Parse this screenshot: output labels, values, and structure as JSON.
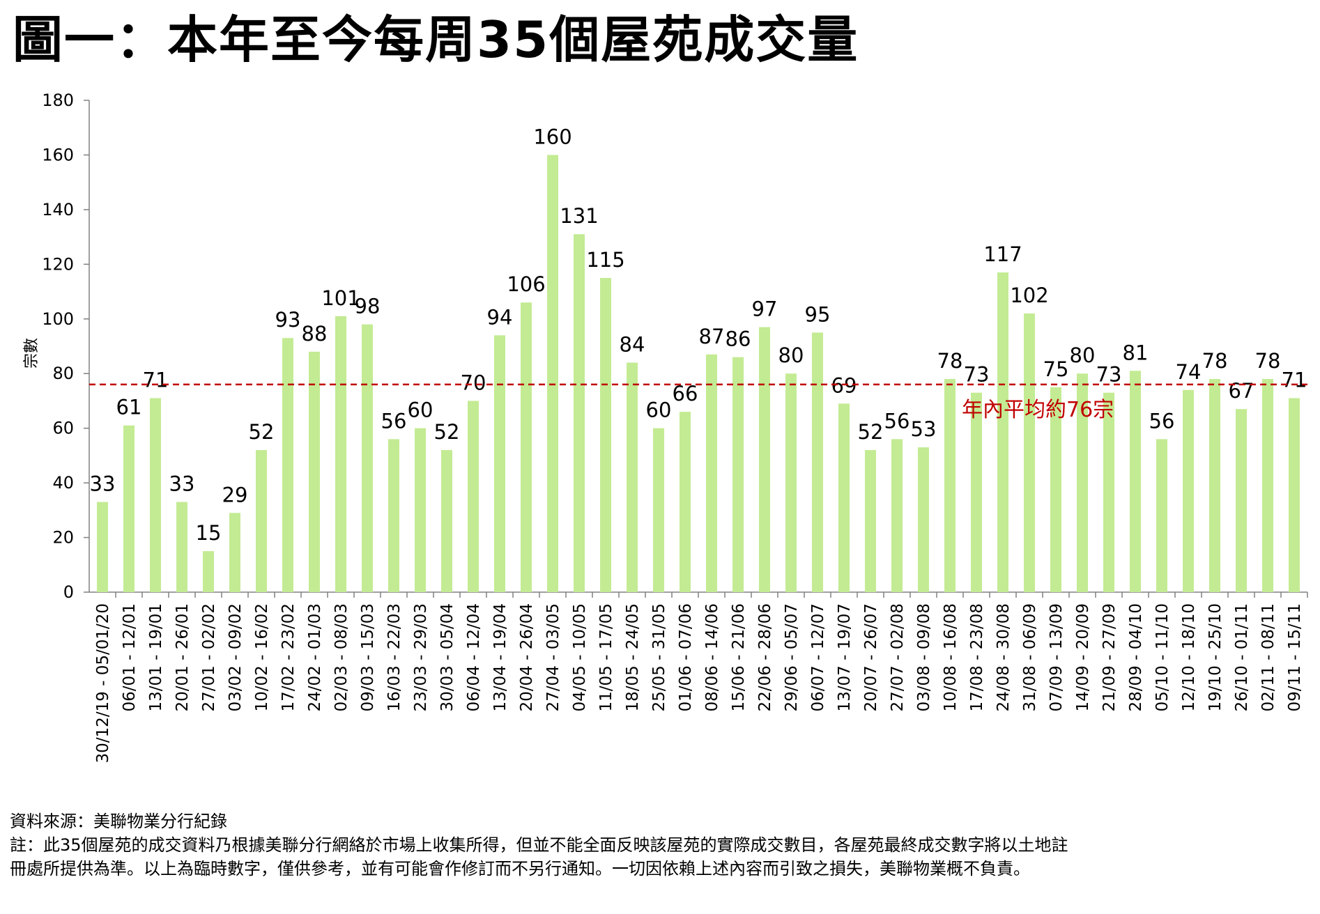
{
  "title": "圖一：本年至今每周35個屋苑成交量",
  "footer": {
    "source": "資料來源：美聯物業分行紀錄",
    "note_line1": "註：此35個屋苑的成交資料乃根據美聯分行網絡於市場上收集所得，但並不能全面反映該屋苑的實際成交數目，各屋苑最終成交數字將以土地註",
    "note_line2": "冊處所提供為準。以上為臨時數字，僅供參考，並有可能會作修訂而不另行通知。一切因依賴上述內容而引致之損失，美聯物業概不負責。"
  },
  "colors": {
    "bar": "#c3eb93",
    "average_line": "#c00000",
    "average_label": "#c00000",
    "axis": "#808080"
  },
  "chart_data": {
    "type": "bar",
    "ylabel": "宗數",
    "ylim": [
      0,
      180
    ],
    "yticks": [
      0,
      20,
      40,
      60,
      80,
      100,
      120,
      140,
      160,
      180
    ],
    "grid": false,
    "categories": [
      "30/12/19 - 05/01/20",
      "06/01 - 12/01",
      "13/01 - 19/01",
      "20/01 - 26/01",
      "27/01 - 02/02",
      "03/02 - 09/02",
      "10/02 - 16/02",
      "17/02 - 23/02",
      "24/02 - 01/03",
      "02/03 - 08/03",
      "09/03 - 15/03",
      "16/03 - 22/03",
      "23/03 - 29/03",
      "30/03 - 05/04",
      "06/04 - 12/04",
      "13/04 - 19/04",
      "20/04 - 26/04",
      "27/04 - 03/05",
      "04/05 - 10/05",
      "11/05 - 17/05",
      "18/05 - 24/05",
      "25/05 - 31/05",
      "01/06 - 07/06",
      "08/06 - 14/06",
      "15/06 - 21/06",
      "22/06 - 28/06",
      "29/06 - 05/07",
      "06/07 - 12/07",
      "13/07 - 19/07",
      "20/07 - 26/07",
      "27/07 - 02/08",
      "03/08 - 09/08",
      "10/08 - 16/08",
      "17/08 - 23/08",
      "24/08 - 30/08",
      "31/08 - 06/09",
      "07/09 - 13/09",
      "14/09 - 20/09",
      "21/09 - 27/09",
      "28/09 - 04/10",
      "05/10 - 11/10",
      "12/10 - 18/10",
      "19/10 - 25/10",
      "26/10 - 01/11",
      "02/11 - 08/11",
      "09/11 - 15/11"
    ],
    "values": [
      33,
      61,
      71,
      33,
      15,
      29,
      52,
      93,
      88,
      101,
      98,
      56,
      60,
      52,
      70,
      94,
      106,
      160,
      131,
      115,
      84,
      60,
      66,
      87,
      86,
      97,
      80,
      95,
      69,
      52,
      56,
      53,
      78,
      73,
      117,
      102,
      75,
      80,
      73,
      81,
      56,
      74,
      78,
      67,
      78,
      71
    ],
    "average": {
      "value": 76,
      "label": "年內平均約76宗"
    }
  }
}
